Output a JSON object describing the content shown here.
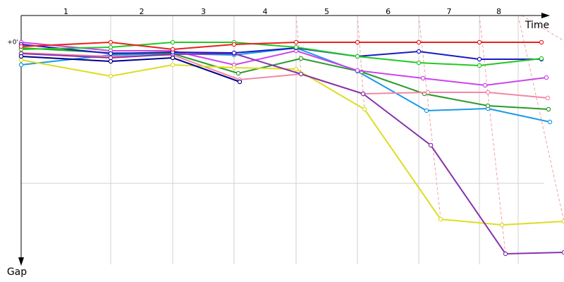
{
  "chart_data": {
    "type": "line",
    "x_label": "Time",
    "y_label": "Gap",
    "laps": [
      "1",
      "2",
      "3",
      "4",
      "5",
      "6",
      "7",
      "8"
    ],
    "lap_boundaries": [
      0,
      127,
      215,
      302,
      390,
      477,
      564,
      650,
      705
    ],
    "xlim": [
      0,
      770
    ],
    "ylim": [
      -38,
      315
    ],
    "yticks": [
      {
        "value": 0,
        "label": "+0'"
      }
    ],
    "hlines": [
      200
    ],
    "series": [
      {
        "color": "#1a9ae8",
        "x": [
          0,
          127,
          215,
          302,
          390,
          477,
          575,
          662,
          750
        ],
        "values": [
          32,
          18,
          16,
          18,
          8,
          41,
          97,
          94,
          113
        ]
      },
      {
        "color": "#2a9a2a",
        "x": [
          0,
          127,
          215,
          308,
          397,
          483,
          572,
          662,
          748
        ],
        "values": [
          8,
          15,
          16,
          44,
          23,
          42,
          73,
          90,
          95
        ]
      },
      {
        "color": "#f088a8",
        "x": [
          0,
          127,
          215,
          310,
          397,
          485,
          577,
          662,
          747
        ],
        "values": [
          15,
          20,
          18,
          53,
          45,
          73,
          71,
          71,
          79
        ]
      },
      {
        "color": "#cc44ee",
        "x": [
          0,
          127,
          215,
          302,
          390,
          477,
          570,
          658,
          745
        ],
        "values": [
          0,
          12,
          12,
          32,
          12,
          40,
          51,
          61,
          50
        ]
      },
      {
        "color": "#dddd22",
        "x": [
          0,
          127,
          215,
          302,
          390,
          487,
          595,
          682,
          770
        ],
        "values": [
          25,
          48,
          32,
          36,
          38,
          95,
          251,
          259,
          254
        ]
      },
      {
        "color": "#8833aa",
        "x": [
          0,
          127,
          215,
          302,
          397,
          485,
          581,
          687,
          770
        ],
        "values": [
          16,
          22,
          17,
          16,
          45,
          73,
          146,
          300,
          298
        ]
      },
      {
        "color": "#000088",
        "x": [
          0,
          127,
          215,
          310
        ],
        "values": [
          20,
          27,
          22,
          56
        ]
      },
      {
        "color": "#1a1ac4",
        "x": [
          0,
          127,
          215,
          302,
          390,
          477,
          564,
          650,
          738
        ],
        "values": [
          3,
          16,
          14,
          15,
          8,
          20,
          13,
          24,
          24
        ]
      },
      {
        "color": "#22c922",
        "x": [
          0,
          127,
          215,
          302,
          390,
          477,
          564,
          650,
          738
        ],
        "values": [
          10,
          7,
          0,
          0,
          7,
          20,
          29,
          33,
          23
        ]
      },
      {
        "color": "#e8211f",
        "x": [
          0,
          127,
          215,
          302,
          390,
          477,
          564,
          650,
          738
        ],
        "values": [
          6,
          0,
          10,
          3,
          0,
          0,
          0,
          0,
          0
        ]
      }
    ]
  }
}
